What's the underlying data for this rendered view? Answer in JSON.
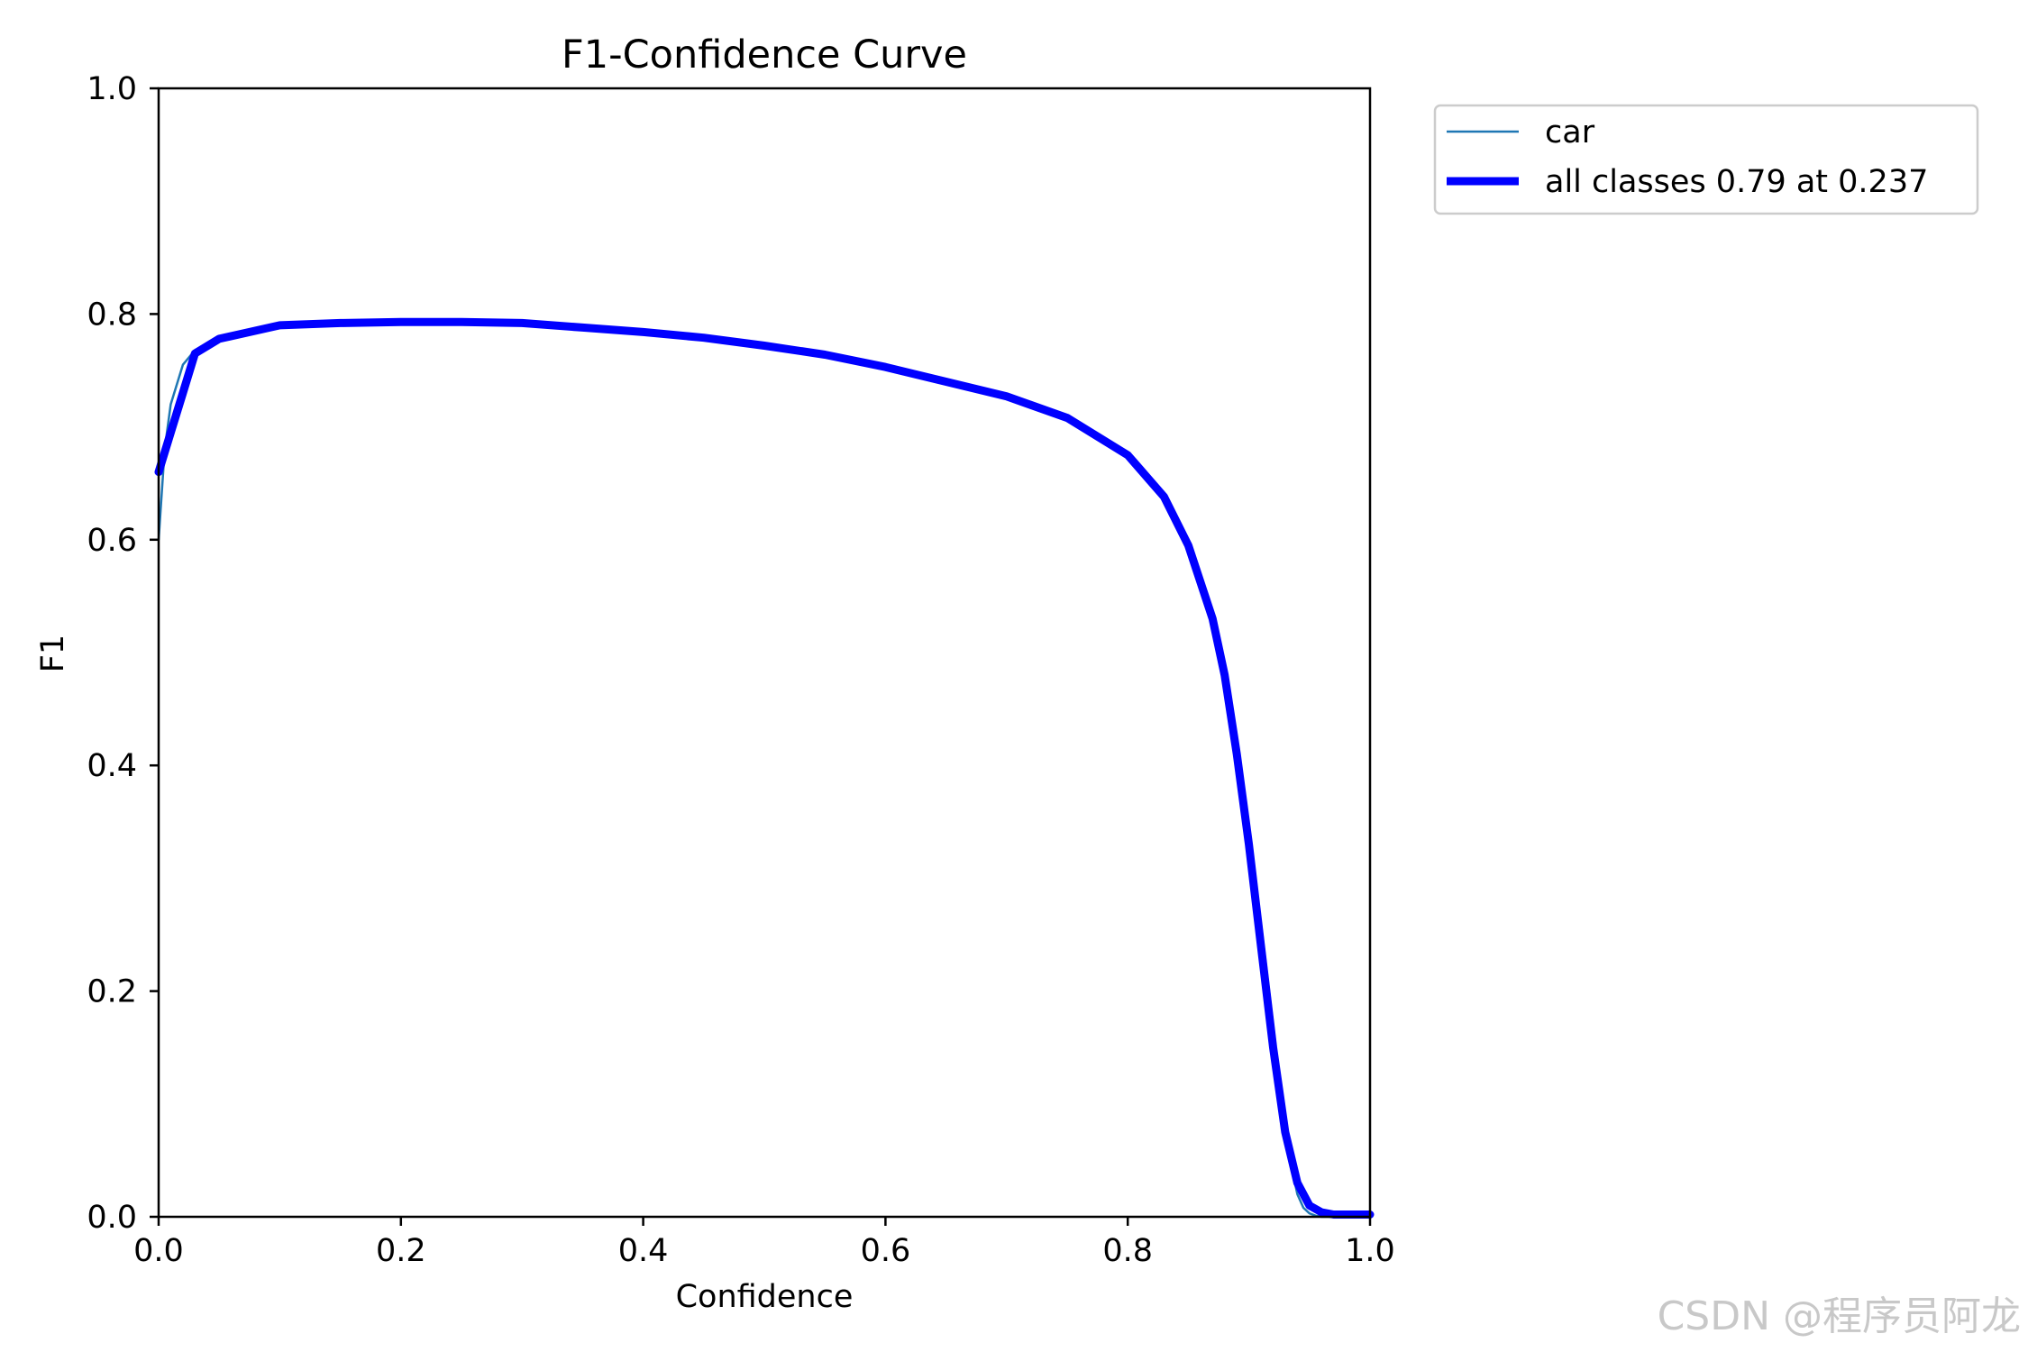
{
  "chart_data": {
    "type": "line",
    "title": "F1-Confidence Curve",
    "xlabel": "Confidence",
    "ylabel": "F1",
    "xlim": [
      0,
      1
    ],
    "ylim": [
      0,
      1
    ],
    "xticks": [
      "0.0",
      "0.2",
      "0.4",
      "0.6",
      "0.8",
      "1.0"
    ],
    "yticks": [
      "0.0",
      "0.2",
      "0.4",
      "0.6",
      "0.8",
      "1.0"
    ],
    "grid": false,
    "legend_position": "outside-top-right",
    "series": [
      {
        "name": "car",
        "color": "#1f77b4",
        "style": "thin",
        "x": [
          0.0,
          0.005,
          0.01,
          0.02,
          0.03,
          0.05,
          0.1,
          0.15,
          0.2,
          0.25,
          0.3,
          0.35,
          0.4,
          0.45,
          0.5,
          0.55,
          0.6,
          0.65,
          0.7,
          0.75,
          0.8,
          0.83,
          0.85,
          0.87,
          0.88,
          0.89,
          0.9,
          0.91,
          0.92,
          0.93,
          0.935,
          0.94,
          0.945,
          0.95,
          0.955,
          0.96,
          0.97,
          0.98,
          1.0
        ],
        "y": [
          0.6,
          0.68,
          0.72,
          0.755,
          0.768,
          0.78,
          0.79,
          0.792,
          0.793,
          0.793,
          0.792,
          0.788,
          0.784,
          0.779,
          0.772,
          0.764,
          0.753,
          0.74,
          0.727,
          0.708,
          0.675,
          0.638,
          0.595,
          0.53,
          0.48,
          0.41,
          0.34,
          0.26,
          0.17,
          0.08,
          0.045,
          0.02,
          0.008,
          0.003,
          0.001,
          0.0,
          0.0,
          0.0,
          0.0
        ]
      },
      {
        "name": "all classes 0.79 at 0.237",
        "color": "#0000ff",
        "style": "thick",
        "x": [
          0.0,
          0.01,
          0.02,
          0.03,
          0.05,
          0.1,
          0.15,
          0.2,
          0.237,
          0.25,
          0.3,
          0.35,
          0.4,
          0.45,
          0.5,
          0.55,
          0.6,
          0.65,
          0.7,
          0.75,
          0.8,
          0.83,
          0.85,
          0.87,
          0.88,
          0.89,
          0.9,
          0.91,
          0.92,
          0.93,
          0.94,
          0.95,
          0.96,
          0.97,
          0.98,
          1.0
        ],
        "y": [
          0.66,
          0.695,
          0.73,
          0.765,
          0.778,
          0.79,
          0.792,
          0.793,
          0.793,
          0.793,
          0.792,
          0.788,
          0.784,
          0.779,
          0.772,
          0.764,
          0.753,
          0.74,
          0.727,
          0.708,
          0.675,
          0.638,
          0.595,
          0.53,
          0.48,
          0.41,
          0.33,
          0.24,
          0.15,
          0.075,
          0.03,
          0.01,
          0.004,
          0.002,
          0.002,
          0.002
        ]
      }
    ]
  },
  "watermark": "CSDN @程序员阿龙"
}
